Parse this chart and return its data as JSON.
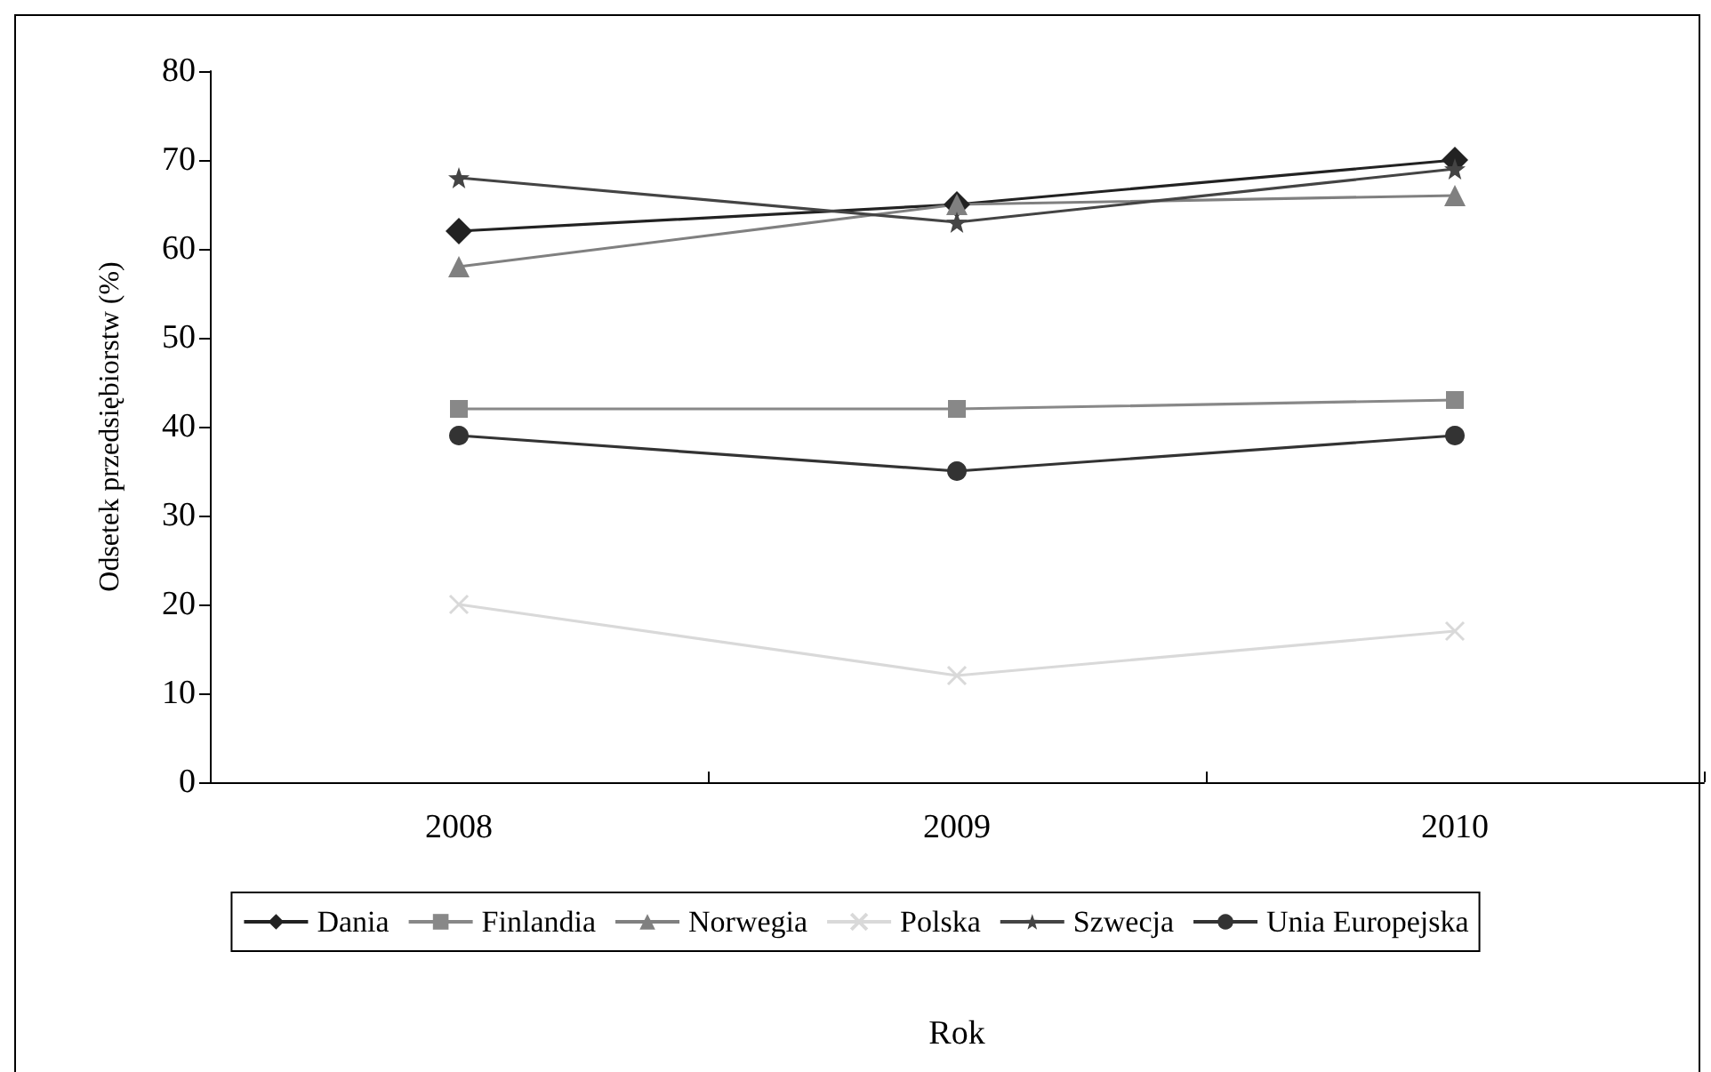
{
  "chart_data": {
    "type": "line",
    "xlabel": "Rok",
    "ylabel": "Odsetek przedsiębiorstw (%)",
    "categories": [
      "2008",
      "2009",
      "2010"
    ],
    "series": [
      {
        "name": "Dania",
        "color": "#222222",
        "marker": "diamond",
        "values": [
          62,
          65,
          70
        ]
      },
      {
        "name": "Finlandia",
        "color": "#888888",
        "marker": "square",
        "values": [
          42,
          42,
          43
        ]
      },
      {
        "name": "Norwegia",
        "color": "#808080",
        "marker": "triangle",
        "values": [
          58,
          65,
          66
        ]
      },
      {
        "name": "Polska",
        "color": "#d9d9d9",
        "marker": "cross",
        "values": [
          20,
          12,
          17
        ]
      },
      {
        "name": "Szwecja",
        "color": "#444444",
        "marker": "star",
        "values": [
          68,
          63,
          69
        ]
      },
      {
        "name": "Unia Europejska",
        "color": "#333333",
        "marker": "circle",
        "values": [
          39,
          35,
          39
        ]
      }
    ],
    "ylim": [
      0,
      80
    ],
    "yticks": [
      0,
      10,
      20,
      30,
      40,
      50,
      60,
      70,
      80
    ],
    "grid": false,
    "legend": "bottom",
    "line_style": "solid"
  }
}
